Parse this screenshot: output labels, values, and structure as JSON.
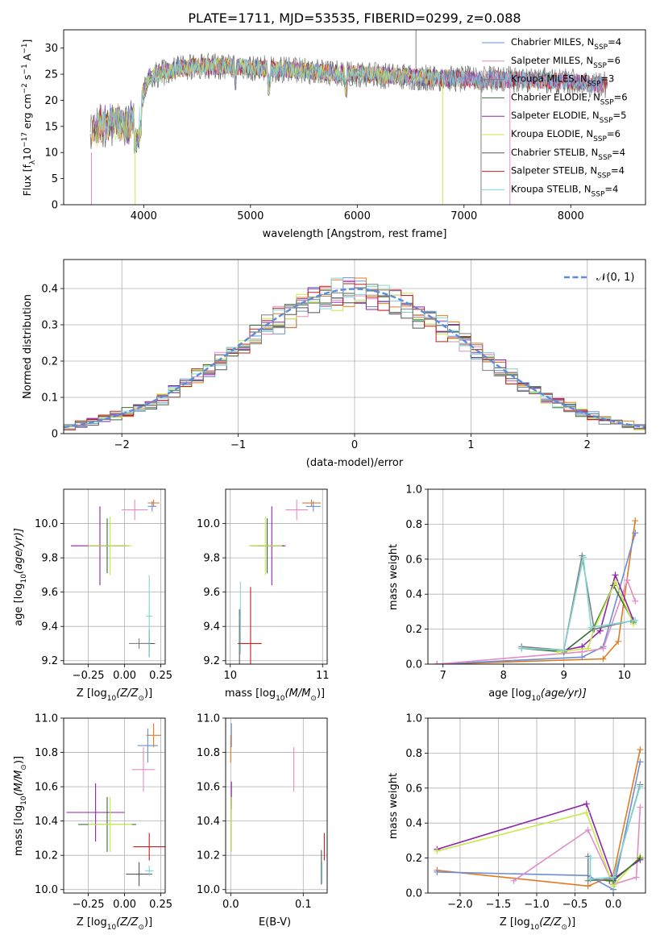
{
  "title": "PLATE=1711, MJD=53535, FIBERID=0299, z=0.088",
  "colors": {
    "Chabrier MILES": "#6b8fd6",
    "Salpeter MILES": "#e48cc6",
    "Kroupa MILES": "#7f7f7f",
    "Chabrier ELODIE": "#3a6b3a",
    "Salpeter ELODIE": "#8e24aa",
    "Kroupa ELODIE": "#c8e84a",
    "Chabrier STELIB": "#555555",
    "Salpeter STELIB": "#c41e1e",
    "Kroupa STELIB": "#7fd6d6",
    "orange": "#e07b22",
    "gauss": "#5b8bd9",
    "grid": "#b0b0b0"
  },
  "chart_data": [
    {
      "id": "spectrum",
      "type": "line",
      "xlabel": "wavelength [Angstrom, rest frame]",
      "ylabel_parts": [
        "Flux [f",
        "λ",
        "10",
        "−17",
        " erg cm",
        "−2",
        " s",
        "−1",
        " A",
        "−1",
        "]"
      ],
      "xlim": [
        3250,
        8700
      ],
      "ylim": [
        0,
        33.5
      ],
      "xticks": [
        4000,
        5000,
        6000,
        7000,
        8000
      ],
      "yticks": [
        0,
        5,
        10,
        15,
        20,
        25,
        30
      ],
      "grid": false,
      "legend_position": "right",
      "legend": [
        {
          "name": "Chabrier MILES",
          "label": "Chabrier MILES, N",
          "sub": "SSP",
          "suffix": "=4"
        },
        {
          "name": "Salpeter MILES",
          "label": "Salpeter MILES, N",
          "sub": "SSP",
          "suffix": "=6"
        },
        {
          "name": "Kroupa MILES",
          "label": "Kroupa MILES, N",
          "sub": "SSP",
          "suffix": "=3"
        },
        {
          "name": "Chabrier ELODIE",
          "label": "Chabrier ELODIE, N",
          "sub": "SSP",
          "suffix": "=6"
        },
        {
          "name": "Salpeter ELODIE",
          "label": "Salpeter ELODIE, N",
          "sub": "SSP",
          "suffix": "=5"
        },
        {
          "name": "Kroupa ELODIE",
          "label": "Kroupa ELODIE, N",
          "sub": "SSP",
          "suffix": "=6"
        },
        {
          "name": "Chabrier STELIB",
          "label": "Chabrier STELIB, N",
          "sub": "SSP",
          "suffix": "=4"
        },
        {
          "name": "Salpeter STELIB",
          "label": "Salpeter STELIB, N",
          "sub": "SSP",
          "suffix": "=4"
        },
        {
          "name": "Kroupa STELIB",
          "label": "Kroupa STELIB, N",
          "sub": "SSP",
          "suffix": "=4"
        }
      ],
      "continuum": [
        [
          3500,
          14
        ],
        [
          3600,
          15.5
        ],
        [
          3750,
          16
        ],
        [
          3850,
          15
        ],
        [
          3950,
          19
        ],
        [
          4050,
          24.5
        ],
        [
          4300,
          26
        ],
        [
          4500,
          26.5
        ],
        [
          4800,
          26.5
        ],
        [
          5200,
          26
        ],
        [
          5600,
          25.5
        ],
        [
          6000,
          25
        ],
        [
          6500,
          24.5
        ],
        [
          7000,
          24
        ],
        [
          7500,
          24
        ],
        [
          8000,
          23.5
        ],
        [
          8300,
          23
        ]
      ],
      "vertical_features": [
        {
          "color": "Salpeter MILES",
          "x": 3510,
          "y0": 0,
          "y1": 10
        },
        {
          "color": "Kroupa ELODIE",
          "x": 3920,
          "y0": 0,
          "y1": 14
        },
        {
          "color": "Kroupa ELODIE",
          "x": 6800,
          "y0": 0,
          "y1": 24
        },
        {
          "color": "Kroupa MILES",
          "x": 7160,
          "y0": 0,
          "y1": 24
        },
        {
          "color": "Salpeter MILES",
          "x": 7430,
          "y0": 0,
          "y1": 24
        },
        {
          "color": "Kroupa MILES",
          "x": 6550,
          "y0": 26,
          "y1": 33.5
        }
      ]
    },
    {
      "id": "residuals",
      "type": "step",
      "xlabel": "(data-model)/error",
      "ylabel": "Normed distribution",
      "xlim": [
        -2.5,
        2.5
      ],
      "ylim": [
        0,
        0.48
      ],
      "xticks": [
        -2,
        -1,
        0,
        1,
        2
      ],
      "yticks": [
        0,
        0.1,
        0.2,
        0.3,
        0.4
      ],
      "grid": true,
      "bin_width": 0.1,
      "legend_position": "upper right",
      "gauss_label": "N(0,1)",
      "gauss": {
        "mean": 0,
        "sigma": 1
      }
    },
    {
      "id": "age_vs_Z",
      "type": "errorbar",
      "xlabel_parts": [
        "Z [log",
        "10",
        "(Z/Z",
        "⊙",
        ")]"
      ],
      "ylabel_parts": [
        "age  [log",
        "10",
        "(age/yr)]"
      ],
      "xlim": [
        -0.42,
        0.28
      ],
      "ylim": [
        9.18,
        10.2
      ],
      "xticks": [
        -0.25,
        0.0,
        0.25
      ],
      "xtick_labels": [
        "−0.25",
        "0.00",
        "0.25"
      ],
      "yticks": [
        9.2,
        9.4,
        9.6,
        9.8,
        10.0
      ],
      "ytick_labels": [
        "9.2",
        "9.4",
        "9.6",
        "9.8",
        "10.0"
      ],
      "grid": true,
      "points": [
        {
          "color": "orange",
          "x": 0.2,
          "xerr": 0.04,
          "y": 10.12,
          "yerr": 0.02
        },
        {
          "color": "Chabrier MILES",
          "x": 0.19,
          "xerr": 0.03,
          "y": 10.1,
          "yerr": 0.03
        },
        {
          "color": "Salpeter MILES",
          "x": 0.07,
          "xerr": 0.09,
          "y": 10.08,
          "yerr": 0.06
        },
        {
          "color": "Chabrier ELODIE",
          "x": -0.12,
          "xerr": 0.12,
          "y": 9.87,
          "yerr": 0.16
        },
        {
          "color": "Salpeter ELODIE",
          "x": -0.17,
          "xerr": 0.2,
          "y": 9.87,
          "yerr": 0.23
        },
        {
          "color": "Kroupa ELODIE",
          "x": -0.1,
          "xerr": 0.15,
          "y": 9.87,
          "yerr": 0.17
        },
        {
          "color": "Chabrier STELIB",
          "x": 0.17,
          "xerr": 0.04,
          "y": 9.3,
          "yerr": 0.08
        },
        {
          "color": "Kroupa STELIB",
          "x": 0.17,
          "xerr": 0.02,
          "y": 9.46,
          "yerr": 0.24
        },
        {
          "color": "Kroupa MILES",
          "x": 0.1,
          "xerr": 0.07,
          "y": 9.3,
          "yerr": 0.03
        }
      ]
    },
    {
      "id": "age_vs_mass",
      "type": "errorbar",
      "xlabel_parts": [
        "mass [log",
        "10",
        "(M/M",
        "⊙",
        ")]"
      ],
      "xlim": [
        9.95,
        11.05
      ],
      "ylim": [
        9.18,
        10.2
      ],
      "xticks": [
        10,
        11
      ],
      "xtick_labels": [
        "10",
        "11"
      ],
      "yticks": [
        9.2,
        9.4,
        9.6,
        9.8,
        10.0
      ],
      "ytick_labels": [
        "9.2",
        "9.4",
        "9.6",
        "9.8",
        "10.0"
      ],
      "grid": true,
      "points": [
        {
          "color": "orange",
          "x": 10.88,
          "xerr": 0.1,
          "y": 10.12,
          "yerr": 0.02
        },
        {
          "color": "Chabrier MILES",
          "x": 10.9,
          "xerr": 0.08,
          "y": 10.1,
          "yerr": 0.03
        },
        {
          "color": "Salpeter MILES",
          "x": 10.72,
          "xerr": 0.12,
          "y": 10.08,
          "yerr": 0.06
        },
        {
          "color": "Chabrier ELODIE",
          "x": 10.4,
          "xerr": 0.18,
          "y": 9.87,
          "yerr": 0.16
        },
        {
          "color": "Salpeter ELODIE",
          "x": 10.45,
          "xerr": 0.15,
          "y": 9.87,
          "yerr": 0.23
        },
        {
          "color": "Kroupa ELODIE",
          "x": 10.38,
          "xerr": 0.18,
          "y": 9.87,
          "yerr": 0.17
        },
        {
          "color": "Chabrier STELIB",
          "x": 10.1,
          "xerr": 0.02,
          "y": 9.3,
          "yerr": 0.2
        },
        {
          "color": "Kroupa STELIB",
          "x": 10.11,
          "xerr": 0.01,
          "y": 9.45,
          "yerr": 0.21
        },
        {
          "color": "Salpeter STELIB",
          "x": 10.22,
          "xerr": 0.12,
          "y": 9.3,
          "yerr": 0.33
        }
      ]
    },
    {
      "id": "weight_vs_age",
      "type": "line",
      "xlabel_parts": [
        "age  [log",
        "10",
        "(age/yr)]"
      ],
      "ylabel": "mass weight",
      "xlim": [
        6.75,
        10.35
      ],
      "ylim": [
        0,
        1.0
      ],
      "xticks": [
        7,
        8,
        9,
        10
      ],
      "xtick_labels": [
        "7",
        "8",
        "9",
        "10"
      ],
      "yticks": [
        0,
        0.2,
        0.4,
        0.6,
        0.8,
        1.0
      ],
      "ytick_labels": [
        "0.0",
        "0.2",
        "0.4",
        "0.6",
        "0.8",
        "1.0"
      ],
      "grid": true,
      "series": [
        {
          "color": "orange",
          "x": [
            6.9,
            9.65,
            9.9,
            10.18
          ],
          "y": [
            0,
            0.03,
            0.13,
            0.82
          ]
        },
        {
          "color": "Chabrier MILES",
          "x": [
            6.9,
            9.3,
            9.65,
            10.18
          ],
          "y": [
            0,
            0.04,
            0.1,
            0.75
          ]
        },
        {
          "color": "Salpeter MILES",
          "x": [
            6.9,
            9.3,
            9.65,
            10.05,
            10.18
          ],
          "y": [
            0,
            0.07,
            0.09,
            0.48,
            0.36
          ]
        },
        {
          "color": "Chabrier ELODIE",
          "x": [
            8.3,
            9.0,
            9.48,
            9.82,
            10.15
          ],
          "y": [
            0.09,
            0.07,
            0.2,
            0.45,
            0.24
          ]
        },
        {
          "color": "Salpeter ELODIE",
          "x": [
            9.0,
            9.3,
            9.6,
            9.85,
            10.15
          ],
          "y": [
            0.08,
            0.1,
            0.19,
            0.51,
            0.25
          ]
        },
        {
          "color": "Kroupa ELODIE",
          "x": [
            8.9,
            9.4,
            9.5,
            9.85,
            10.15
          ],
          "y": [
            0.07,
            0.09,
            0.2,
            0.47,
            0.23
          ]
        },
        {
          "color": "Kroupa MILES",
          "x": [
            8.3,
            9.0,
            9.3,
            9.5,
            10.15
          ],
          "y": [
            0.1,
            0.08,
            0.62,
            0.2,
            0.25
          ]
        },
        {
          "color": "Kroupa STELIB",
          "x": [
            8.3,
            9.0,
            9.32,
            9.45,
            10.18
          ],
          "y": [
            0.09,
            0.08,
            0.61,
            0.21,
            0.25
          ]
        }
      ]
    },
    {
      "id": "mass_vs_Z",
      "type": "errorbar",
      "xlabel_parts": [
        "Z [log",
        "10",
        "(Z/Z",
        "⊙",
        ")]"
      ],
      "ylabel_parts": [
        "mass [log",
        "10",
        "(M/M",
        "⊙",
        ")]"
      ],
      "xlim": [
        -0.42,
        0.28
      ],
      "ylim": [
        9.98,
        11.0
      ],
      "xticks": [
        -0.25,
        0.0,
        0.25
      ],
      "xtick_labels": [
        "−0.25",
        "0.00",
        "0.25"
      ],
      "yticks": [
        10.0,
        10.2,
        10.4,
        10.6,
        10.8,
        11.0
      ],
      "ytick_labels": [
        "10.0",
        "10.2",
        "10.4",
        "10.6",
        "10.8",
        "11.0"
      ],
      "grid": true,
      "points": [
        {
          "color": "orange",
          "x": 0.2,
          "xerr": 0.05,
          "y": 10.9,
          "yerr": 0.07
        },
        {
          "color": "Chabrier MILES",
          "x": 0.16,
          "xerr": 0.07,
          "y": 10.84,
          "yerr": 0.1
        },
        {
          "color": "Salpeter MILES",
          "x": 0.13,
          "xerr": 0.08,
          "y": 10.7,
          "yerr": 0.13
        },
        {
          "color": "Salpeter ELODIE",
          "x": -0.2,
          "xerr": 0.2,
          "y": 10.45,
          "yerr": 0.17
        },
        {
          "color": "Chabrier ELODIE",
          "x": -0.12,
          "xerr": 0.2,
          "y": 10.38,
          "yerr": 0.16
        },
        {
          "color": "Kroupa ELODIE",
          "x": -0.1,
          "xerr": 0.15,
          "y": 10.38,
          "yerr": 0.16
        },
        {
          "color": "Salpeter STELIB",
          "x": 0.17,
          "xerr": 0.11,
          "y": 10.25,
          "yerr": 0.08
        },
        {
          "color": "Chabrier STELIB",
          "x": 0.1,
          "xerr": 0.09,
          "y": 10.09,
          "yerr": 0.07
        },
        {
          "color": "Kroupa STELIB",
          "x": 0.17,
          "xerr": 0.03,
          "y": 10.11,
          "yerr": 0.03
        }
      ]
    },
    {
      "id": "mass_vs_EBV",
      "type": "errorbar",
      "xlabel": "E(B-V)",
      "xlim": [
        -0.007,
        0.133
      ],
      "ylim": [
        9.98,
        11.0
      ],
      "xticks": [
        0,
        0.1
      ],
      "xtick_labels": [
        "0.0",
        "0.1"
      ],
      "yticks": [
        10.0,
        10.2,
        10.4,
        10.6,
        10.8,
        11.0
      ],
      "ytick_labels": [
        "10.0",
        "10.2",
        "10.4",
        "10.6",
        "10.8",
        "11.0"
      ],
      "grid": true,
      "points": [
        {
          "color": "Chabrier MILES",
          "x": 0.001,
          "xerr": 0,
          "y": 10.9,
          "yerr": 0.07
        },
        {
          "color": "orange",
          "x": 0.0,
          "xerr": 0,
          "y": 10.82,
          "yerr": 0.08
        },
        {
          "color": "Salpeter ELODIE",
          "x": 0.001,
          "xerr": 0,
          "y": 10.55,
          "yerr": 0.08
        },
        {
          "color": "Kroupa ELODIE",
          "x": 0.001,
          "xerr": 0,
          "y": 10.38,
          "yerr": 0.16
        },
        {
          "color": "Salpeter MILES",
          "x": 0.087,
          "xerr": 0,
          "y": 10.7,
          "yerr": 0.13
        },
        {
          "color": "Chabrier STELIB",
          "x": 0.125,
          "xerr": 0,
          "y": 10.13,
          "yerr": 0.1
        },
        {
          "color": "Kroupa STELIB",
          "x": 0.126,
          "xerr": 0,
          "y": 10.1,
          "yerr": 0.06
        },
        {
          "color": "Salpeter STELIB",
          "x": 0.129,
          "xerr": 0,
          "y": 10.25,
          "yerr": 0.08
        }
      ]
    },
    {
      "id": "weight_vs_Z",
      "type": "line",
      "xlabel_parts": [
        "Z [log",
        "10",
        "(Z/Z",
        "⊙",
        ")]"
      ],
      "ylabel": "mass weight",
      "xlim": [
        -2.42,
        0.42
      ],
      "ylim": [
        0,
        1.0
      ],
      "xticks": [
        -2.0,
        -1.5,
        -1.0,
        -0.5,
        0.0
      ],
      "xtick_labels": [
        "−2.0",
        "−1.5",
        "−1.0",
        "−0.5",
        "0.0"
      ],
      "yticks": [
        0,
        0.2,
        0.4,
        0.6,
        0.8,
        1.0
      ],
      "ytick_labels": [
        "0.0",
        "0.2",
        "0.4",
        "0.6",
        "0.8",
        "1.0"
      ],
      "grid": true,
      "series": [
        {
          "color": "orange",
          "x": [
            -2.3,
            -0.33,
            0.0,
            0.35
          ],
          "y": [
            0.13,
            0.04,
            0.1,
            0.82
          ]
        },
        {
          "color": "Chabrier MILES",
          "x": [
            -2.3,
            -0.33,
            0.0,
            0.35
          ],
          "y": [
            0.12,
            0.1,
            0.02,
            0.75
          ]
        },
        {
          "color": "Salpeter MILES",
          "x": [
            -1.3,
            -0.33,
            0.0,
            0.3,
            0.35
          ],
          "y": [
            0.07,
            0.36,
            0.05,
            0.09,
            0.49
          ]
        },
        {
          "color": "Salpeter ELODIE",
          "x": [
            -2.3,
            -0.35,
            0.0,
            0.35
          ],
          "y": [
            0.25,
            0.51,
            0.08,
            0.19
          ]
        },
        {
          "color": "Kroupa ELODIE",
          "x": [
            -2.3,
            -0.35,
            0.0,
            0.35
          ],
          "y": [
            0.24,
            0.46,
            0.04,
            0.21
          ]
        },
        {
          "color": "Chabrier ELODIE",
          "x": [
            -0.3,
            -0.05,
            0.0,
            0.35
          ],
          "y": [
            0.08,
            0.07,
            0.07,
            0.2
          ]
        },
        {
          "color": "Kroupa MILES",
          "x": [
            -0.33,
            -0.33,
            0.0,
            0.35
          ],
          "y": [
            0.21,
            0.07,
            0.08,
            0.62
          ]
        },
        {
          "color": "Kroupa STELIB",
          "x": [
            -0.3,
            -0.3,
            0.0,
            0.35
          ],
          "y": [
            0.2,
            0.08,
            0.09,
            0.61
          ]
        }
      ]
    }
  ]
}
